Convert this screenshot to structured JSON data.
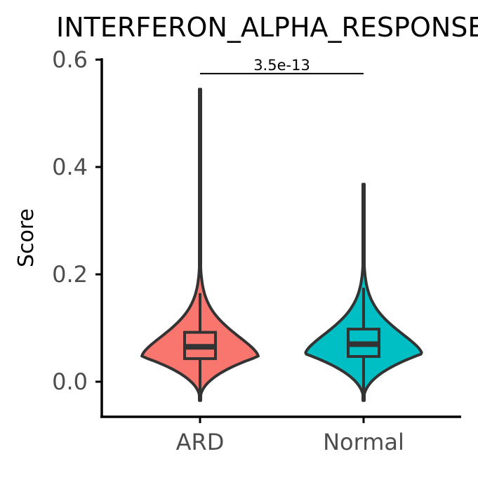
{
  "chart_data": {
    "type": "violin",
    "title": "INTERFERON_ALPHA_RESPONSE",
    "xlabel": "",
    "ylabel": "Score",
    "ylim": [
      -0.065,
      0.6
    ],
    "y_ticks": [
      "0.0",
      "0.2",
      "0.4",
      "0.6"
    ],
    "categories": [
      "ARD",
      "Normal"
    ],
    "series": [
      {
        "category": "ARD",
        "color": "#F8766D",
        "min": -0.035,
        "q1": 0.043,
        "median": 0.065,
        "q3": 0.092,
        "whisker_low": -0.02,
        "whisker_high": 0.165,
        "max": 0.545
      },
      {
        "category": "Normal",
        "color": "#00BFC4",
        "min": -0.035,
        "q1": 0.047,
        "median": 0.07,
        "q3": 0.098,
        "whisker_low": -0.02,
        "whisker_high": 0.175,
        "max": 0.368
      }
    ],
    "annotations": [
      {
        "text": "3.5e-13",
        "from": "ARD",
        "to": "Normal",
        "y": 0.574
      }
    ],
    "grid": false,
    "legend": "none"
  }
}
